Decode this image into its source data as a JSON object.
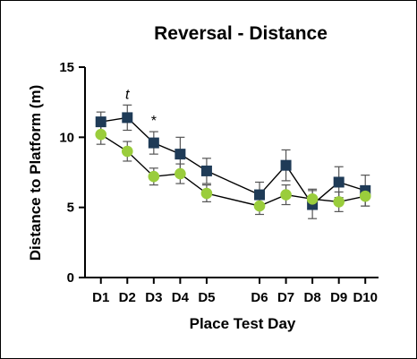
{
  "chart_data": {
    "type": "line",
    "title": "Reversal - Distance",
    "xlabel": "Place Test  Day",
    "ylabel": "Distance to Platform (m)",
    "ylim": [
      0,
      15
    ],
    "yticks": [
      0,
      5,
      10,
      15
    ],
    "categories": [
      "D1",
      "D2",
      "D3",
      "D4",
      "D5",
      "D6",
      "D7",
      "D8",
      "D9",
      "D10"
    ],
    "x_positions": [
      1,
      2,
      3,
      4,
      5,
      7,
      8,
      9,
      10,
      11
    ],
    "xlim": [
      0.4,
      11.5
    ],
    "series": [
      {
        "marker": "square",
        "color": "#1f3b57",
        "values": [
          11.1,
          11.4,
          9.6,
          8.8,
          7.6,
          5.9,
          8.0,
          5.2,
          6.8,
          6.2
        ],
        "errors": [
          0.7,
          0.9,
          0.8,
          1.2,
          0.9,
          0.9,
          1.1,
          1.0,
          1.1,
          1.1
        ]
      },
      {
        "marker": "circle",
        "color": "#9acd3c",
        "values": [
          10.2,
          9.0,
          7.2,
          7.4,
          6.0,
          5.1,
          5.9,
          5.6,
          5.4,
          5.8
        ],
        "errors": [
          0.7,
          0.7,
          0.6,
          0.7,
          0.6,
          0.6,
          0.7,
          0.7,
          0.7,
          0.7
        ]
      }
    ],
    "annotations": [
      {
        "text": "t",
        "category": "D2",
        "style": "italic"
      },
      {
        "text": "*",
        "category": "D3",
        "style": "normal"
      }
    ]
  }
}
